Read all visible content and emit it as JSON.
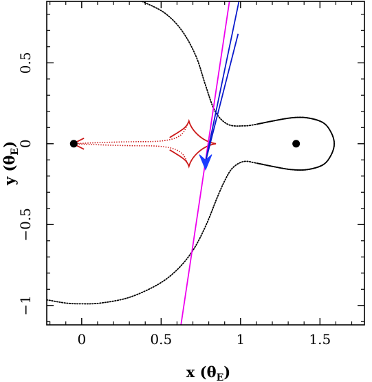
{
  "chart_data": {
    "type": "line",
    "xlabel": "x (θ",
    "xlabel_sub": "E",
    "xlabel_close": ")",
    "ylabel": "y (θ",
    "ylabel_sub": "E",
    "ylabel_close": ")",
    "xlim": [
      -0.22,
      1.78
    ],
    "ylim": [
      -1.12,
      0.88
    ],
    "x_ticks": [
      0,
      0.5,
      1,
      1.5
    ],
    "x_tick_labels": [
      "0",
      "0.5",
      "1",
      "1.5"
    ],
    "y_ticks": [
      -1,
      -0.5,
      0,
      0.5
    ],
    "y_tick_labels": [
      "−1",
      "−0.5",
      "0",
      "0.5"
    ],
    "grid": false,
    "colors": {
      "critical_curve": "#000000",
      "caustic": "#cc1a1a",
      "trajectory": "#ee00ee",
      "arrows": "#0a1acc",
      "arrowhead": "#1a3cff",
      "lens": "#000000"
    },
    "lenses": [
      {
        "x": -0.05,
        "y": 0.0
      },
      {
        "x": 1.35,
        "y": 0.0
      }
    ],
    "critical_curve_outer": [
      [
        0.38,
        0.88
      ],
      [
        0.52,
        0.81
      ],
      [
        0.63,
        0.7
      ],
      [
        0.72,
        0.54
      ],
      [
        0.78,
        0.36
      ],
      [
        0.84,
        0.2
      ],
      [
        0.92,
        0.12
      ],
      [
        1.02,
        0.11
      ],
      [
        1.1,
        0.12
      ],
      [
        1.2,
        0.14
      ],
      [
        1.32,
        0.16
      ],
      [
        1.42,
        0.16
      ],
      [
        1.52,
        0.13
      ],
      [
        1.57,
        0.07
      ],
      [
        1.59,
        0.0
      ],
      [
        1.57,
        -0.07
      ],
      [
        1.52,
        -0.13
      ],
      [
        1.42,
        -0.16
      ],
      [
        1.32,
        -0.16
      ],
      [
        1.2,
        -0.14
      ],
      [
        1.1,
        -0.12
      ],
      [
        1.02,
        -0.11
      ],
      [
        0.95,
        -0.15
      ],
      [
        0.9,
        -0.23
      ],
      [
        0.85,
        -0.34
      ],
      [
        0.78,
        -0.51
      ],
      [
        0.7,
        -0.66
      ],
      [
        0.6,
        -0.78
      ],
      [
        0.48,
        -0.87
      ],
      [
        0.3,
        -0.95
      ],
      [
        0.12,
        -0.985
      ],
      [
        0.0,
        -0.99
      ],
      [
        -0.1,
        -0.985
      ],
      [
        -0.22,
        -0.965
      ]
    ],
    "caustic_cusps": {
      "left": [
        -0.055,
        0.0
      ],
      "right": [
        0.845,
        0.0
      ],
      "top": [
        0.675,
        0.14
      ],
      "bottom": [
        0.675,
        -0.14
      ],
      "neck": 0.4
    },
    "trajectory_line": [
      [
        0.625,
        -1.12
      ],
      [
        0.93,
        0.88
      ]
    ],
    "arrows": [
      {
        "from": [
          0.985,
          0.68
        ],
        "to": [
          0.78,
          -0.11
        ]
      },
      {
        "from": [
          0.99,
          0.88
        ],
        "to": [
          0.78,
          -0.11
        ]
      }
    ]
  }
}
